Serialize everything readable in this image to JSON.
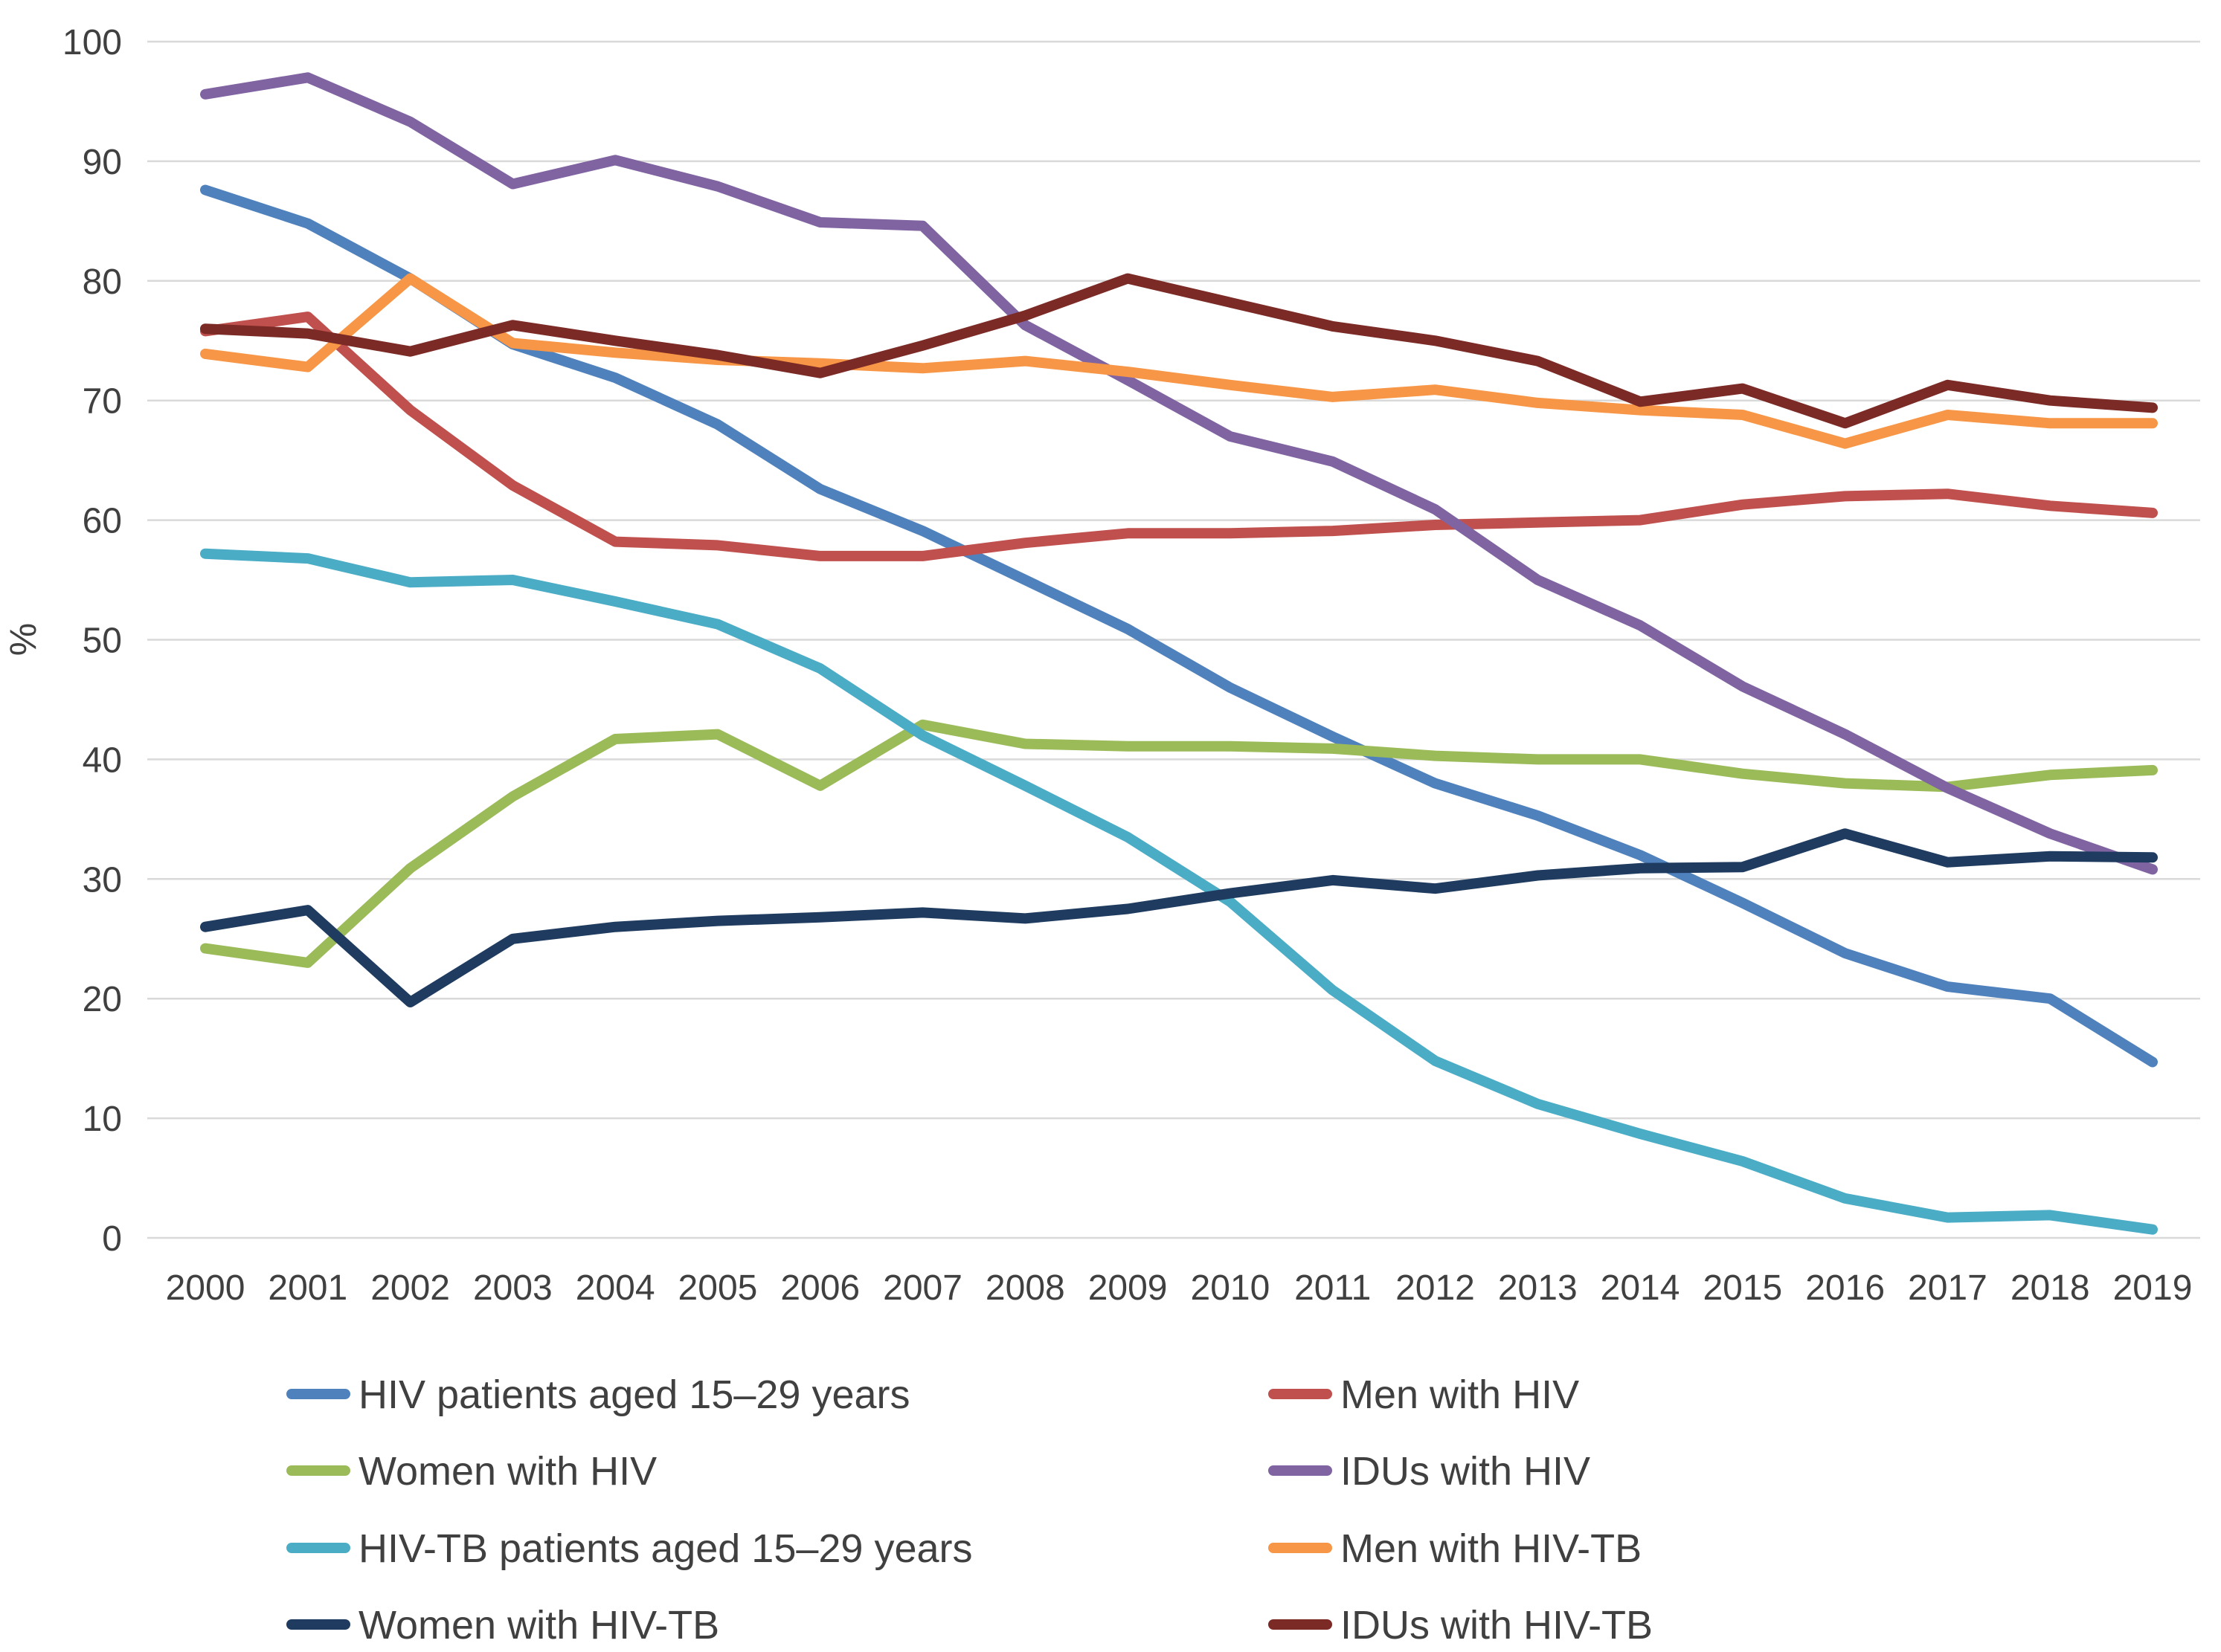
{
  "chart_data": {
    "type": "line",
    "title": "",
    "xlabel": "",
    "ylabel": "%",
    "ylim": [
      0,
      100
    ],
    "yticks": [
      0,
      10,
      20,
      30,
      40,
      50,
      60,
      70,
      80,
      90,
      100
    ],
    "grid": true,
    "legend_position": "bottom",
    "categories": [
      "2000",
      "2001",
      "2002",
      "2003",
      "2004",
      "2005",
      "2006",
      "2007",
      "2008",
      "2009",
      "2010",
      "2011",
      "2012",
      "2013",
      "2014",
      "2015",
      "2016",
      "2017",
      "2018",
      "2019"
    ],
    "series": [
      {
        "name": "HIV patients aged 15–29 years",
        "color": "#4f81bd",
        "values": [
          87.6,
          84.8,
          80.2,
          74.7,
          71.9,
          68.0,
          62.6,
          59.1,
          55.0,
          50.9,
          46.0,
          41.9,
          38.0,
          35.3,
          32.0,
          28.0,
          23.8,
          21.0,
          20.0,
          14.7
        ]
      },
      {
        "name": "Men with HIV",
        "color": "#c0504d",
        "values": [
          75.8,
          77.0,
          69.2,
          62.9,
          58.2,
          57.9,
          57.0,
          57.0,
          58.1,
          58.9,
          58.9,
          59.1,
          59.6,
          59.8,
          60.0,
          61.3,
          62.0,
          62.2,
          61.2,
          60.6
        ]
      },
      {
        "name": "Women with HIV",
        "color": "#9bbb59",
        "values": [
          24.2,
          23.0,
          30.9,
          36.9,
          41.7,
          42.1,
          37.8,
          42.9,
          41.3,
          41.1,
          41.1,
          40.9,
          40.3,
          40.0,
          40.0,
          38.8,
          38.0,
          37.7,
          38.7,
          39.1
        ]
      },
      {
        "name": "IDUs with HIV",
        "color": "#8064a2",
        "values": [
          95.6,
          97.0,
          93.3,
          88.1,
          90.1,
          87.9,
          84.9,
          84.6,
          76.3,
          71.7,
          67.0,
          64.9,
          60.9,
          55.0,
          51.2,
          46.1,
          42.1,
          37.6,
          33.8,
          30.8
        ]
      },
      {
        "name": "HIV-TB patients aged 15–29 years",
        "color": "#4bacc6",
        "values": [
          57.2,
          56.8,
          54.8,
          55.0,
          53.2,
          51.3,
          47.6,
          42.0,
          37.8,
          33.5,
          28.1,
          20.7,
          14.8,
          11.2,
          8.7,
          6.4,
          3.3,
          1.7,
          1.9,
          0.7
        ]
      },
      {
        "name": "Men with HIV-TB",
        "color": "#f79646",
        "values": [
          73.9,
          72.8,
          80.2,
          74.8,
          74.0,
          73.4,
          73.1,
          72.7,
          73.3,
          72.4,
          71.3,
          70.3,
          70.9,
          69.8,
          69.2,
          68.8,
          66.4,
          68.8,
          68.1,
          68.1
        ]
      },
      {
        "name": "Women with HIV-TB",
        "color": "#1f3c60",
        "values": [
          26.0,
          27.4,
          19.7,
          25.0,
          26.0,
          26.5,
          26.8,
          27.2,
          26.7,
          27.5,
          28.8,
          29.9,
          29.2,
          30.3,
          30.9,
          31.0,
          33.8,
          31.4,
          31.9,
          31.8
        ]
      },
      {
        "name": "IDUs with HIV-TB",
        "color": "#7b2a26",
        "values": [
          76.0,
          75.6,
          74.1,
          76.3,
          75.0,
          73.8,
          72.3,
          74.6,
          77.1,
          80.2,
          78.2,
          76.2,
          75.0,
          73.3,
          69.9,
          71.0,
          68.1,
          71.3,
          70.0,
          69.4
        ]
      }
    ]
  }
}
